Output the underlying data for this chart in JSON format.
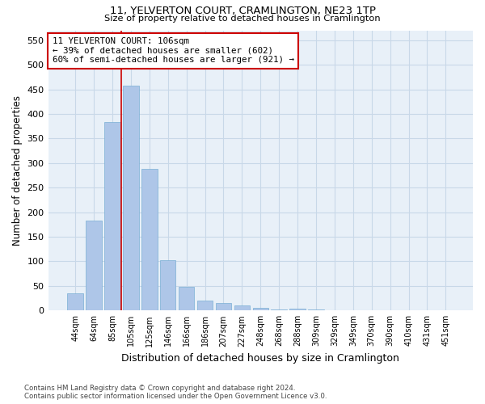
{
  "title": "11, YELVERTON COURT, CRAMLINGTON, NE23 1TP",
  "subtitle": "Size of property relative to detached houses in Cramlington",
  "xlabel": "Distribution of detached houses by size in Cramlington",
  "ylabel": "Number of detached properties",
  "categories": [
    "44sqm",
    "64sqm",
    "85sqm",
    "105sqm",
    "125sqm",
    "146sqm",
    "166sqm",
    "186sqm",
    "207sqm",
    "227sqm",
    "248sqm",
    "268sqm",
    "288sqm",
    "309sqm",
    "329sqm",
    "349sqm",
    "370sqm",
    "390sqm",
    "410sqm",
    "431sqm",
    "451sqm"
  ],
  "values": [
    35,
    183,
    383,
    457,
    288,
    102,
    48,
    20,
    15,
    10,
    6,
    2,
    3,
    2,
    0,
    0,
    0,
    1,
    0,
    1,
    0
  ],
  "bar_color": "#aec6e8",
  "bar_edge_color": "#7aafd4",
  "highlight_line_index": 3,
  "highlight_line_color": "#cc0000",
  "annotation_text": "11 YELVERTON COURT: 106sqm\n← 39% of detached houses are smaller (602)\n60% of semi-detached houses are larger (921) →",
  "annotation_box_color": "#ffffff",
  "annotation_box_edge": "#cc0000",
  "ylim": [
    0,
    570
  ],
  "yticks": [
    0,
    50,
    100,
    150,
    200,
    250,
    300,
    350,
    400,
    450,
    500,
    550
  ],
  "grid_color": "#c8d8e8",
  "background_color": "#e8f0f8",
  "footer": "Contains HM Land Registry data © Crown copyright and database right 2024.\nContains public sector information licensed under the Open Government Licence v3.0."
}
